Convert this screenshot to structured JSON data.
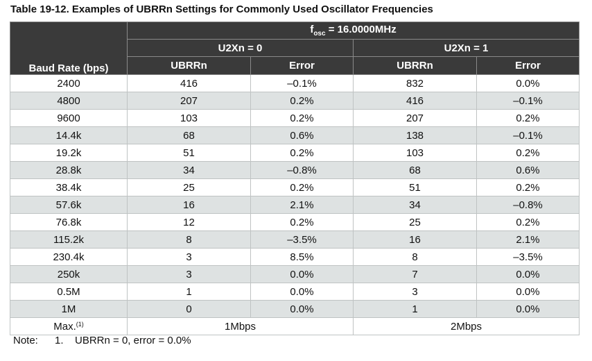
{
  "title": "Table 19-12. Examples of UBRRn Settings for Commonly Used Oscillator Frequencies",
  "header": {
    "osc_f": "f",
    "osc_sub": "osc",
    "osc_value": " = 16.0000MHz",
    "baud_label": "Baud Rate (bps)",
    "group_u2x0": "U2Xn = 0",
    "group_u2x1": "U2Xn = 1",
    "col_ubrr": "UBRRn",
    "col_error": "Error"
  },
  "rows": [
    {
      "baud": "2400",
      "ubrr0": "416",
      "err0": "–0.1%",
      "ubrr1": "832",
      "err1": "0.0%"
    },
    {
      "baud": "4800",
      "ubrr0": "207",
      "err0": "0.2%",
      "ubrr1": "416",
      "err1": "–0.1%"
    },
    {
      "baud": "9600",
      "ubrr0": "103",
      "err0": "0.2%",
      "ubrr1": "207",
      "err1": "0.2%"
    },
    {
      "baud": "14.4k",
      "ubrr0": "68",
      "err0": "0.6%",
      "ubrr1": "138",
      "err1": "–0.1%"
    },
    {
      "baud": "19.2k",
      "ubrr0": "51",
      "err0": "0.2%",
      "ubrr1": "103",
      "err1": "0.2%"
    },
    {
      "baud": "28.8k",
      "ubrr0": "34",
      "err0": "–0.8%",
      "ubrr1": "68",
      "err1": "0.6%"
    },
    {
      "baud": "38.4k",
      "ubrr0": "25",
      "err0": "0.2%",
      "ubrr1": "51",
      "err1": "0.2%"
    },
    {
      "baud": "57.6k",
      "ubrr0": "16",
      "err0": "2.1%",
      "ubrr1": "34",
      "err1": "–0.8%"
    },
    {
      "baud": "76.8k",
      "ubrr0": "12",
      "err0": "0.2%",
      "ubrr1": "25",
      "err1": "0.2%"
    },
    {
      "baud": "115.2k",
      "ubrr0": "8",
      "err0": "–3.5%",
      "ubrr1": "16",
      "err1": "2.1%"
    },
    {
      "baud": "230.4k",
      "ubrr0": "3",
      "err0": "8.5%",
      "ubrr1": "8",
      "err1": "–3.5%"
    },
    {
      "baud": "250k",
      "ubrr0": "3",
      "err0": "0.0%",
      "ubrr1": "7",
      "err1": "0.0%"
    },
    {
      "baud": "0.5M",
      "ubrr0": "1",
      "err0": "0.0%",
      "ubrr1": "3",
      "err1": "0.0%"
    },
    {
      "baud": "1M",
      "ubrr0": "0",
      "err0": "0.0%",
      "ubrr1": "1",
      "err1": "0.0%"
    }
  ],
  "max_row": {
    "label": "Max.",
    "footnote_ref": "(1)",
    "u2x0": "1Mbps",
    "u2x1": "2Mbps"
  },
  "note": {
    "label": "Note:",
    "number": "1.",
    "text": "UBRRn = 0, error = 0.0%"
  }
}
